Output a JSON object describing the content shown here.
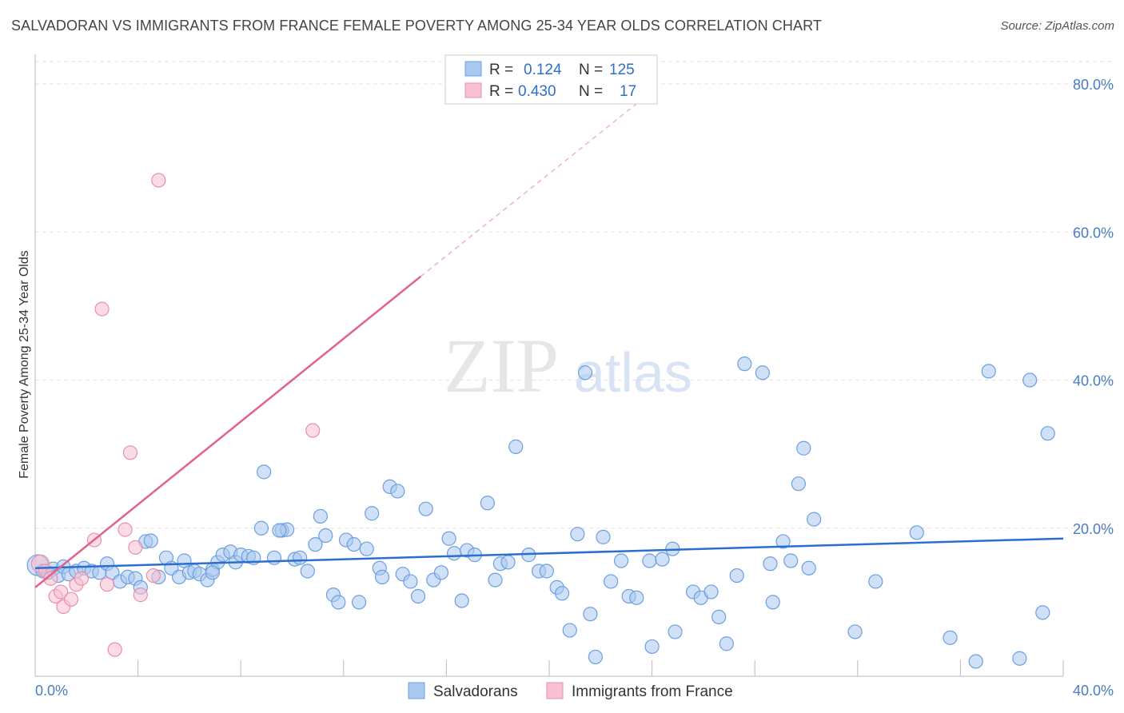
{
  "title": "SALVADORAN VS IMMIGRANTS FROM FRANCE FEMALE POVERTY AMONG 25-34 YEAR OLDS CORRELATION CHART",
  "source": "Source: ZipAtlas.com",
  "watermark": {
    "zip": "ZIP",
    "atlas": "atlas"
  },
  "colors": {
    "blue": "#a9c8f0",
    "blue_stroke": "#6c9fe0",
    "blue_line": "#2a6fce",
    "pink": "#f7bfd0",
    "pink_stroke": "#e98fae",
    "pink_line": "#e0628f"
  },
  "legend": {
    "r_label": "R =",
    "n_label": "N =",
    "rows": [
      {
        "r": "0.124",
        "n": "125"
      },
      {
        "r": "0.430",
        "n": "17"
      }
    ]
  },
  "chart_data": {
    "type": "scatter",
    "title": "SALVADORAN VS IMMIGRANTS FROM FRANCE FEMALE POVERTY AMONG 25-34 YEAR OLDS CORRELATION CHART",
    "xlabel": "",
    "ylabel": "Female Poverty Among 25-34 Year Olds",
    "xlim": [
      0,
      40
    ],
    "ylim": [
      0,
      84
    ],
    "x_tick_labels": [
      "0.0%",
      "40.0%"
    ],
    "y_ticks": [
      20,
      40,
      60,
      80
    ],
    "y_tick_labels": [
      "20.0%",
      "40.0%",
      "60.0%",
      "80.0%"
    ],
    "legend_entries": [
      "Salvadorans",
      "Immigrants from France"
    ],
    "series": [
      {
        "name": "Salvadorans",
        "r": 0.124,
        "n": 125,
        "trend": {
          "x": [
            0,
            40
          ],
          "y": [
            14.6,
            18.6
          ]
        },
        "points": [
          [
            0.1,
            15.0
          ],
          [
            0.3,
            14.2
          ],
          [
            0.5,
            14.0
          ],
          [
            0.7,
            14.5
          ],
          [
            0.9,
            13.6
          ],
          [
            1.1,
            14.8
          ],
          [
            1.3,
            13.8
          ],
          [
            1.6,
            14.2
          ],
          [
            1.9,
            14.6
          ],
          [
            2.2,
            14.2
          ],
          [
            2.5,
            14.0
          ],
          [
            2.8,
            15.2
          ],
          [
            3.0,
            14.0
          ],
          [
            3.3,
            12.8
          ],
          [
            3.6,
            13.4
          ],
          [
            3.9,
            13.2
          ],
          [
            4.1,
            12.0
          ],
          [
            4.3,
            18.2
          ],
          [
            4.5,
            18.3
          ],
          [
            4.8,
            13.4
          ],
          [
            5.1,
            16.0
          ],
          [
            5.3,
            14.6
          ],
          [
            5.6,
            13.4
          ],
          [
            5.8,
            15.6
          ],
          [
            6.0,
            14.0
          ],
          [
            6.2,
            14.2
          ],
          [
            6.4,
            13.8
          ],
          [
            6.7,
            13.0
          ],
          [
            6.9,
            14.4
          ],
          [
            7.1,
            15.4
          ],
          [
            7.3,
            16.4
          ],
          [
            7.6,
            16.8
          ],
          [
            7.8,
            15.4
          ],
          [
            8.0,
            16.4
          ],
          [
            8.3,
            16.2
          ],
          [
            8.5,
            16.0
          ],
          [
            8.8,
            20.0
          ],
          [
            8.9,
            27.6
          ],
          [
            9.3,
            16.0
          ],
          [
            9.6,
            19.7
          ],
          [
            9.8,
            19.8
          ],
          [
            10.1,
            15.8
          ],
          [
            10.3,
            16.0
          ],
          [
            10.6,
            14.2
          ],
          [
            10.9,
            17.8
          ],
          [
            11.1,
            21.6
          ],
          [
            11.3,
            19.0
          ],
          [
            11.6,
            11.0
          ],
          [
            11.8,
            10.0
          ],
          [
            12.1,
            18.4
          ],
          [
            12.4,
            17.8
          ],
          [
            12.6,
            10.0
          ],
          [
            12.9,
            17.2
          ],
          [
            13.1,
            22.0
          ],
          [
            13.4,
            14.6
          ],
          [
            13.5,
            13.4
          ],
          [
            13.8,
            25.6
          ],
          [
            14.1,
            25.0
          ],
          [
            14.3,
            13.8
          ],
          [
            14.6,
            12.8
          ],
          [
            14.9,
            10.8
          ],
          [
            15.2,
            22.6
          ],
          [
            15.5,
            13.0
          ],
          [
            15.8,
            14.0
          ],
          [
            16.1,
            18.6
          ],
          [
            16.3,
            16.6
          ],
          [
            16.6,
            10.2
          ],
          [
            16.8,
            17.0
          ],
          [
            17.1,
            16.4
          ],
          [
            17.6,
            23.4
          ],
          [
            17.9,
            13.0
          ],
          [
            18.1,
            15.2
          ],
          [
            18.4,
            15.4
          ],
          [
            18.7,
            31.0
          ],
          [
            19.2,
            16.4
          ],
          [
            19.6,
            14.2
          ],
          [
            19.9,
            14.2
          ],
          [
            20.3,
            12.0
          ],
          [
            20.5,
            11.2
          ],
          [
            20.8,
            6.2
          ],
          [
            21.1,
            19.2
          ],
          [
            21.4,
            41.0
          ],
          [
            21.6,
            8.4
          ],
          [
            21.8,
            2.6
          ],
          [
            22.1,
            18.8
          ],
          [
            22.4,
            12.8
          ],
          [
            22.8,
            15.6
          ],
          [
            23.1,
            10.8
          ],
          [
            23.4,
            10.6
          ],
          [
            23.9,
            15.6
          ],
          [
            24.0,
            4.0
          ],
          [
            24.4,
            15.8
          ],
          [
            24.8,
            17.2
          ],
          [
            24.9,
            6.0
          ],
          [
            25.6,
            11.4
          ],
          [
            25.9,
            10.6
          ],
          [
            26.3,
            11.4
          ],
          [
            26.6,
            8.0
          ],
          [
            26.9,
            4.4
          ],
          [
            27.3,
            13.6
          ],
          [
            27.6,
            42.2
          ],
          [
            28.3,
            41.0
          ],
          [
            28.6,
            15.2
          ],
          [
            28.7,
            10.0
          ],
          [
            29.1,
            18.2
          ],
          [
            29.4,
            15.6
          ],
          [
            29.7,
            26.0
          ],
          [
            29.9,
            30.8
          ],
          [
            30.1,
            14.6
          ],
          [
            30.3,
            21.2
          ],
          [
            31.9,
            6.0
          ],
          [
            32.7,
            12.8
          ],
          [
            34.3,
            19.4
          ],
          [
            35.6,
            5.2
          ],
          [
            36.6,
            2.0
          ],
          [
            37.1,
            41.2
          ],
          [
            38.3,
            2.4
          ],
          [
            38.7,
            40.0
          ],
          [
            39.2,
            8.6
          ],
          [
            39.4,
            32.8
          ],
          [
            6.9,
            14.0
          ],
          [
            9.5,
            19.7
          ]
        ]
      },
      {
        "name": "Immigrants from France",
        "r": 0.43,
        "n": 17,
        "trend": {
          "x": [
            0,
            15
          ],
          "y": [
            12.0,
            54.0
          ],
          "dashed_to": {
            "x": 24,
            "y": 79.0
          }
        },
        "points": [
          [
            0.2,
            15.2
          ],
          [
            0.4,
            14.2
          ],
          [
            0.6,
            13.2
          ],
          [
            0.8,
            10.8
          ],
          [
            1.0,
            11.4
          ],
          [
            1.1,
            9.4
          ],
          [
            1.4,
            10.4
          ],
          [
            1.6,
            12.4
          ],
          [
            1.8,
            13.2
          ],
          [
            2.3,
            18.4
          ],
          [
            2.6,
            49.6
          ],
          [
            2.8,
            12.4
          ],
          [
            3.1,
            3.6
          ],
          [
            3.5,
            19.8
          ],
          [
            3.7,
            30.2
          ],
          [
            3.9,
            17.4
          ],
          [
            4.1,
            11.0
          ],
          [
            4.6,
            13.6
          ],
          [
            4.8,
            67.0
          ],
          [
            10.8,
            33.2
          ]
        ]
      }
    ]
  }
}
